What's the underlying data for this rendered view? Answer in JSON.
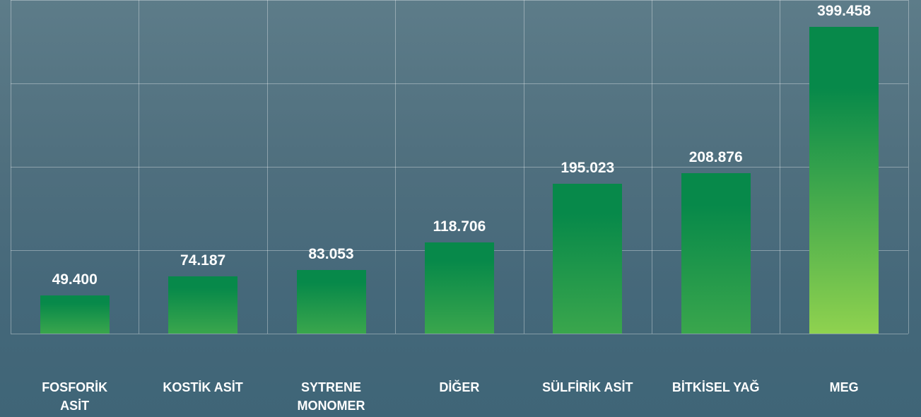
{
  "chart_data": {
    "type": "bar",
    "categories": [
      "FOSFORİK ASİT",
      "KOSTİK ASİT",
      "SYTRENE MONOMER",
      "DİĞER",
      "SÜLFİRİK ASİT",
      "BİTKİSEL YAĞ",
      "MEG"
    ],
    "values": [
      49400,
      74187,
      83053,
      118706,
      195023,
      208876,
      399458
    ],
    "value_labels": [
      "49.400",
      "74.187",
      "83.053",
      "118.706",
      "195.023",
      "208.876",
      "399.458"
    ],
    "color": "#07894a",
    "ylim": [
      0,
      400000
    ]
  }
}
